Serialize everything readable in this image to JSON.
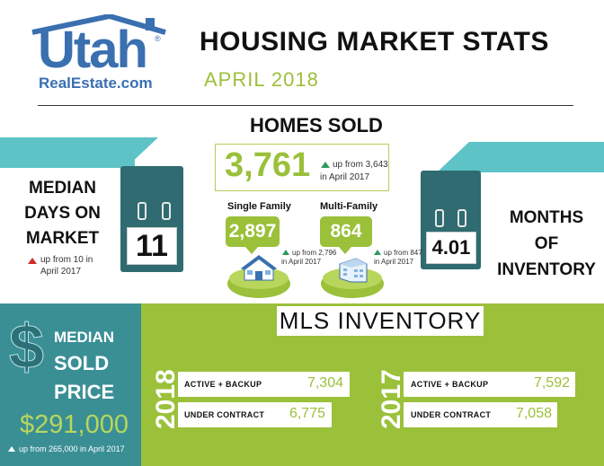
{
  "logo": {
    "main": "Utah",
    "sub": "RealEstate.com",
    "reg": "®"
  },
  "header": {
    "title": "HOUSING MARKET STATS",
    "subtitle": "APRIL 2018"
  },
  "homes_sold": {
    "title": "HOMES SOLD",
    "value": "3,761",
    "change_line1": "up from 3,643",
    "change_line2": "in April 2017",
    "single_family": {
      "label": "Single Family",
      "value": "2,897",
      "change_line1": "up from 2,796",
      "change_line2": "in April 2017"
    },
    "multi_family": {
      "label": "Multi-Family",
      "value": "864",
      "change_line1": "up from 847",
      "change_line2": "in April 2017"
    }
  },
  "days_on_market": {
    "label_line1": "MEDIAN",
    "label_line2": "DAYS ON",
    "label_line3": "MARKET",
    "value": "11",
    "change_line1": "up from 10 in",
    "change_line2": "April 2017"
  },
  "months_inventory": {
    "label_line1": "MONTHS",
    "label_line2": "OF",
    "label_line3": "INVENTORY",
    "value": "4.01"
  },
  "sold_price": {
    "label_line1": "MEDIAN",
    "label_line2": "SOLD",
    "label_line3": "PRICE",
    "symbol": "$",
    "value": "$291,000",
    "change": "up from 265,000 in April 2017"
  },
  "mls_inventory": {
    "title": "MLS INVENTORY",
    "years": [
      {
        "year": "2018",
        "active_label": "ACTIVE + BACKUP",
        "active_value": "7,304",
        "contract_label": "UNDER CONTRACT",
        "contract_value": "6,775"
      },
      {
        "year": "2017",
        "active_label": "ACTIVE + BACKUP",
        "active_value": "7,592",
        "contract_label": "UNDER CONTRACT",
        "contract_value": "7,058"
      }
    ]
  },
  "colors": {
    "green": "#9bc03a",
    "teal": "#5ec3c6",
    "dark_teal": "#2f6b70",
    "blue": "#3a6fb0",
    "panel_teal": "#3a8f95"
  }
}
